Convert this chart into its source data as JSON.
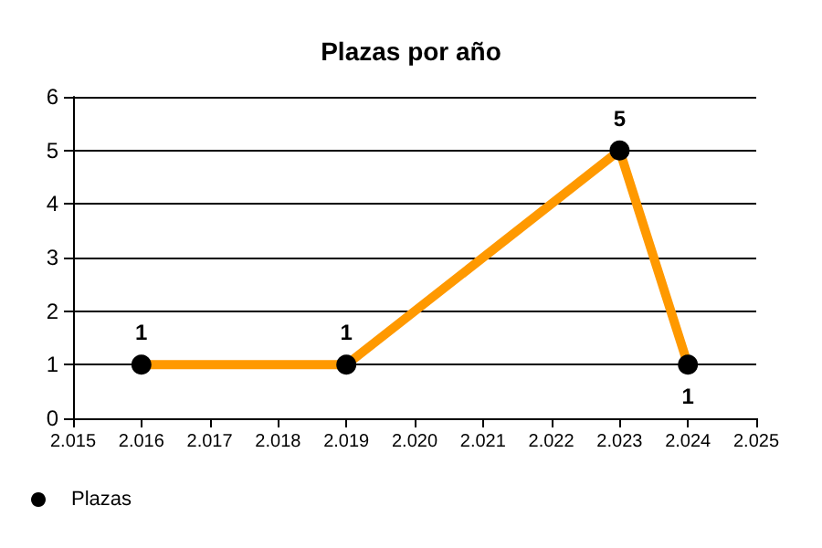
{
  "chart_data": {
    "type": "line",
    "title": "Plazas por año",
    "x": [
      2016,
      2019,
      2023,
      2024
    ],
    "series": [
      {
        "name": "Plazas",
        "color": "#ff9900",
        "values": [
          1,
          1,
          5,
          1
        ]
      }
    ],
    "xlim": [
      2015,
      2025
    ],
    "xticks": [
      {
        "value": 2015,
        "label": "2.015"
      },
      {
        "value": 2016,
        "label": "2.016"
      },
      {
        "value": 2017,
        "label": "2.017"
      },
      {
        "value": 2018,
        "label": "2.018"
      },
      {
        "value": 2019,
        "label": "2.019"
      },
      {
        "value": 2020,
        "label": "2.020"
      },
      {
        "value": 2021,
        "label": "2.021"
      },
      {
        "value": 2022,
        "label": "2.022"
      },
      {
        "value": 2023,
        "label": "2.023"
      },
      {
        "value": 2024,
        "label": "2.024"
      },
      {
        "value": 2025,
        "label": "2.025"
      }
    ],
    "ylim": [
      0,
      6
    ],
    "yticks": [
      0,
      1,
      2,
      3,
      4,
      5,
      6
    ],
    "grid": "y",
    "legend": "bottom left",
    "marker": "circle",
    "line_style": "solid",
    "data_labels": true
  }
}
